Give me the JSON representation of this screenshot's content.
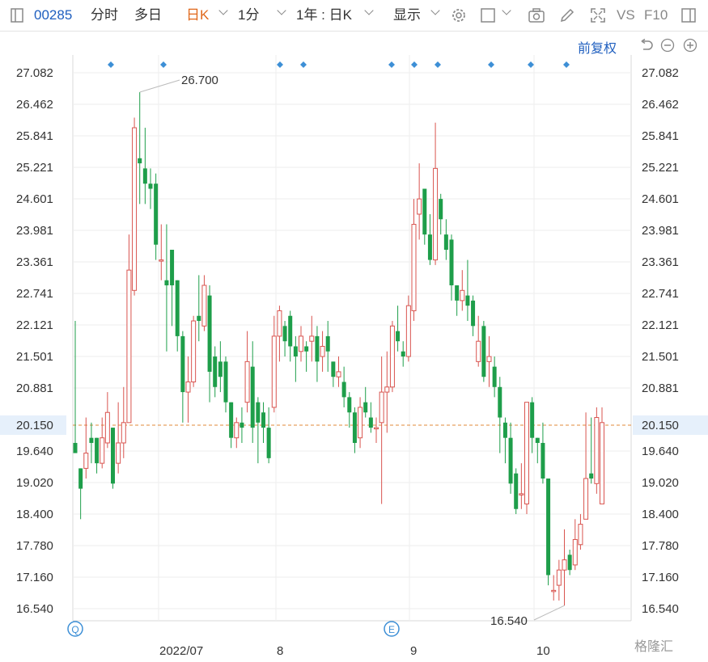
{
  "toolbar": {
    "code": "00285",
    "tabs": [
      "分时",
      "多日",
      "日K",
      "1分"
    ],
    "range": "1年 : 日K",
    "display": "显示",
    "vs": "VS",
    "f10": "F10"
  },
  "adjust_label": "前复权",
  "watermark": "格隆汇",
  "chart_data": {
    "type": "candlestick",
    "y_ticks": [
      27.082,
      26.462,
      25.841,
      25.221,
      24.601,
      23.981,
      23.361,
      22.741,
      22.121,
      21.501,
      20.881,
      20.15,
      19.64,
      19.02,
      18.4,
      17.78,
      17.16,
      16.54
    ],
    "x_labels": [
      "2022/07",
      "8",
      "9",
      "10"
    ],
    "current_price": 20.15,
    "high_annotation": "26.700",
    "low_annotation": "16.540",
    "event_markers": [
      "Q",
      "E"
    ],
    "up_color": "#d9544f",
    "down_color": "#1e9e4a",
    "candles": [
      [
        19.8,
        19.6,
        22.2,
        19.6
      ],
      [
        19.3,
        18.9,
        19.3,
        18.3
      ],
      [
        19.3,
        19.6,
        20.3,
        19.1
      ],
      [
        19.9,
        19.8,
        20.2,
        19.4
      ],
      [
        19.9,
        19.4,
        19.9,
        19.2
      ],
      [
        19.4,
        19.9,
        20.3,
        19.3
      ],
      [
        19.8,
        20.4,
        20.8,
        19.7
      ],
      [
        20.1,
        19.0,
        20.1,
        18.9
      ],
      [
        19.4,
        19.8,
        20.6,
        19.2
      ],
      [
        19.8,
        20.2,
        20.9,
        19.5
      ],
      [
        20.2,
        23.2,
        23.9,
        20.2
      ],
      [
        22.8,
        26.0,
        26.2,
        22.7
      ],
      [
        25.4,
        25.3,
        26.7,
        24.5
      ],
      [
        25.2,
        24.9,
        26.0,
        24.5
      ],
      [
        24.9,
        24.8,
        25.2,
        24.4
      ],
      [
        24.9,
        23.7,
        25.1,
        23.4
      ],
      [
        23.4,
        23.4,
        24.1,
        23.0
      ],
      [
        23.0,
        22.9,
        24.1,
        21.6
      ],
      [
        23.6,
        22.9,
        23.6,
        22.1
      ],
      [
        23.0,
        21.9,
        23.0,
        21.6
      ],
      [
        21.9,
        20.8,
        22.0,
        20.2
      ],
      [
        20.8,
        21.0,
        21.5,
        20.2
      ],
      [
        21.0,
        22.2,
        22.3,
        20.9
      ],
      [
        22.3,
        22.2,
        23.1,
        21.8
      ],
      [
        22.1,
        22.9,
        23.1,
        22.0
      ],
      [
        22.7,
        21.2,
        22.9,
        20.6
      ],
      [
        21.5,
        20.9,
        21.7,
        20.7
      ],
      [
        21.4,
        21.1,
        21.8,
        20.8
      ],
      [
        21.4,
        20.6,
        21.5,
        20.4
      ],
      [
        20.6,
        19.9,
        20.6,
        19.7
      ],
      [
        19.9,
        20.2,
        20.3,
        19.7
      ],
      [
        20.2,
        20.1,
        20.5,
        19.8
      ],
      [
        20.6,
        21.4,
        22.0,
        20.4
      ],
      [
        21.3,
        20.1,
        21.8,
        19.8
      ],
      [
        20.6,
        20.2,
        20.7,
        19.4
      ],
      [
        20.4,
        20.1,
        20.6,
        19.8
      ],
      [
        20.1,
        19.5,
        20.5,
        19.4
      ],
      [
        20.5,
        21.9,
        22.3,
        20.4
      ],
      [
        21.9,
        22.4,
        22.5,
        21.4
      ],
      [
        22.1,
        21.8,
        22.2,
        21.5
      ],
      [
        22.3,
        21.7,
        22.4,
        21.4
      ],
      [
        21.7,
        21.5,
        21.9,
        21.0
      ],
      [
        21.6,
        21.9,
        22.1,
        21.4
      ],
      [
        21.7,
        21.6,
        21.8,
        21.2
      ],
      [
        21.8,
        21.9,
        22.3,
        21.4
      ],
      [
        21.9,
        21.4,
        22.1,
        21.0
      ],
      [
        21.5,
        21.7,
        22.0,
        21.2
      ],
      [
        21.9,
        21.6,
        22.2,
        21.2
      ],
      [
        21.4,
        21.1,
        21.4,
        20.9
      ],
      [
        21.1,
        21.2,
        21.5,
        20.9
      ],
      [
        21.0,
        20.7,
        21.3,
        20.5
      ],
      [
        20.7,
        20.4,
        20.8,
        20.1
      ],
      [
        20.4,
        19.8,
        20.5,
        19.6
      ],
      [
        19.9,
        20.5,
        20.7,
        19.7
      ],
      [
        20.6,
        20.4,
        20.9,
        20.3
      ],
      [
        20.3,
        20.1,
        20.6,
        20.0
      ],
      [
        20.1,
        20.1,
        20.3,
        19.8
      ],
      [
        20.2,
        20.8,
        21.5,
        18.6
      ],
      [
        20.8,
        20.9,
        21.6,
        20.0
      ],
      [
        20.9,
        22.1,
        22.2,
        20.8
      ],
      [
        22.0,
        21.8,
        22.5,
        21.6
      ],
      [
        21.6,
        21.5,
        21.8,
        21.3
      ],
      [
        21.5,
        22.5,
        22.7,
        21.4
      ],
      [
        22.4,
        24.1,
        24.6,
        22.2
      ],
      [
        24.3,
        24.6,
        25.3,
        23.8
      ],
      [
        24.8,
        23.9,
        24.8,
        23.7
      ],
      [
        23.9,
        23.4,
        24.3,
        23.3
      ],
      [
        23.4,
        25.2,
        26.1,
        23.3
      ],
      [
        24.6,
        24.2,
        24.7,
        23.9
      ],
      [
        23.9,
        23.6,
        24.2,
        23.4
      ],
      [
        23.8,
        22.9,
        23.9,
        22.6
      ],
      [
        22.9,
        22.6,
        22.9,
        22.3
      ],
      [
        22.6,
        22.8,
        23.2,
        22.4
      ],
      [
        22.7,
        22.5,
        23.4,
        22.2
      ],
      [
        22.6,
        22.1,
        22.7,
        21.9
      ],
      [
        21.4,
        21.8,
        22.3,
        21.3
      ],
      [
        22.1,
        21.1,
        22.2,
        21.0
      ],
      [
        21.4,
        21.5,
        21.9,
        20.9
      ],
      [
        21.3,
        20.9,
        21.5,
        20.7
      ],
      [
        20.9,
        20.3,
        21.1,
        19.6
      ],
      [
        20.2,
        19.9,
        20.3,
        19.4
      ],
      [
        19.9,
        19.0,
        20.2,
        18.8
      ],
      [
        19.2,
        18.5,
        19.3,
        18.4
      ],
      [
        18.8,
        18.8,
        19.4,
        18.5
      ],
      [
        18.6,
        20.6,
        20.6,
        18.4
      ],
      [
        20.6,
        19.9,
        20.7,
        19.6
      ],
      [
        19.9,
        19.8,
        19.9,
        19.4
      ],
      [
        19.8,
        19.1,
        20.2,
        19.0
      ],
      [
        19.1,
        17.2,
        19.1,
        17.0
      ],
      [
        16.9,
        16.9,
        17.2,
        16.7
      ],
      [
        17.0,
        17.3,
        17.5,
        16.7
      ],
      [
        17.3,
        17.5,
        18.1,
        16.6
      ],
      [
        17.6,
        17.3,
        17.7,
        17.2
      ],
      [
        17.4,
        17.9,
        18.3,
        17.3
      ],
      [
        17.8,
        18.2,
        18.4,
        17.7
      ],
      [
        18.3,
        19.1,
        20.4,
        18.3
      ],
      [
        19.2,
        19.1,
        20.3,
        19.0
      ],
      [
        19.0,
        20.3,
        20.5,
        18.8
      ],
      [
        18.6,
        20.2,
        20.5,
        18.6
      ]
    ]
  }
}
